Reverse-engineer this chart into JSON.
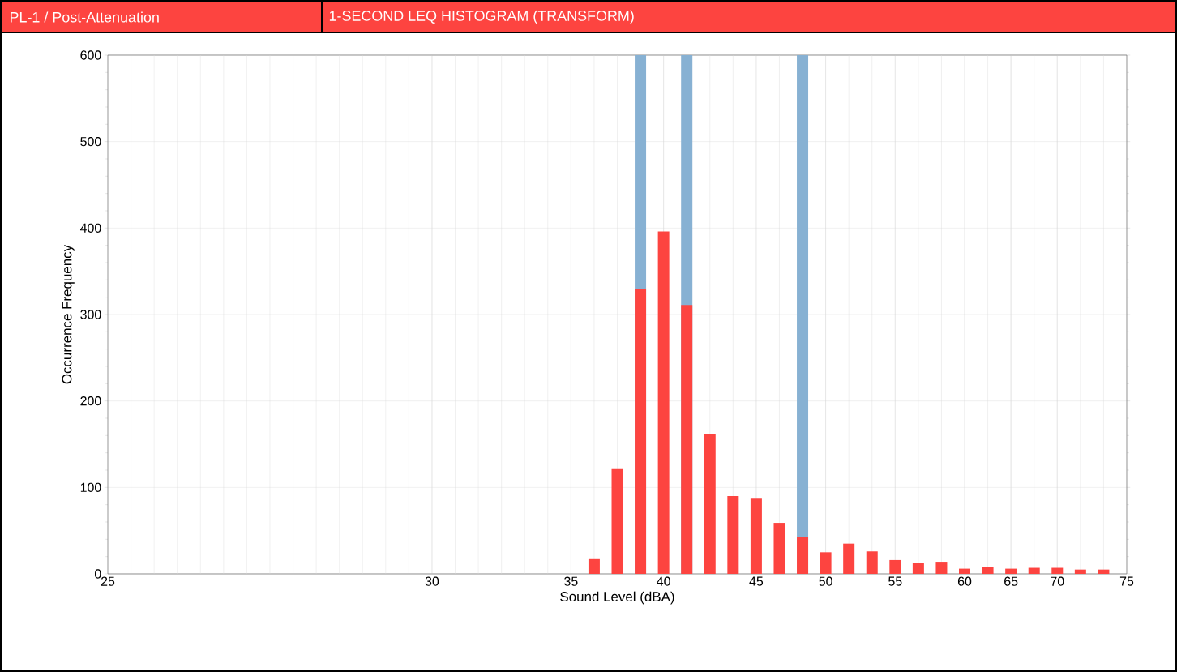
{
  "chart_data": {
    "type": "bar",
    "title": "PL-1 / Post-Attenuation",
    "subtitle": "1-SECOND LEQ HISTOGRAM (TRANSFORM)",
    "xlabel": "Sound Level (dBA)",
    "ylabel": "Occurrence Frequency",
    "categories": [
      "25",
      null,
      null,
      null,
      null,
      null,
      null,
      null,
      null,
      null,
      null,
      null,
      null,
      null,
      "30",
      null,
      null,
      null,
      null,
      null,
      "35",
      null,
      null,
      null,
      "40",
      null,
      null,
      null,
      "45",
      null,
      null,
      "50",
      null,
      null,
      "55",
      null,
      null,
      "60",
      null,
      "65",
      null,
      "70",
      null,
      null,
      "75"
    ],
    "series": [
      {
        "color": "#87b1d3",
        "values": [
          null,
          null,
          null,
          null,
          null,
          null,
          null,
          null,
          null,
          null,
          null,
          null,
          null,
          null,
          null,
          null,
          null,
          null,
          null,
          null,
          null,
          null,
          null,
          600,
          null,
          600,
          null,
          null,
          null,
          null,
          600,
          null,
          null,
          null,
          null,
          null,
          null,
          null,
          null,
          null,
          null,
          null,
          null,
          null,
          null
        ]
      },
      {
        "color": "#fd4440",
        "values": [
          null,
          null,
          null,
          null,
          null,
          null,
          null,
          null,
          null,
          null,
          null,
          null,
          null,
          null,
          null,
          null,
          null,
          null,
          null,
          null,
          null,
          18,
          122,
          330,
          396,
          311,
          162,
          90,
          88,
          59,
          43,
          25,
          35,
          26,
          16,
          13,
          14,
          6,
          8,
          6,
          7,
          7,
          5,
          5,
          null
        ]
      }
    ],
    "ylim": [
      0,
      600
    ],
    "yticks": [
      0,
      100,
      200,
      300,
      400,
      500,
      600
    ],
    "grid": true
  }
}
